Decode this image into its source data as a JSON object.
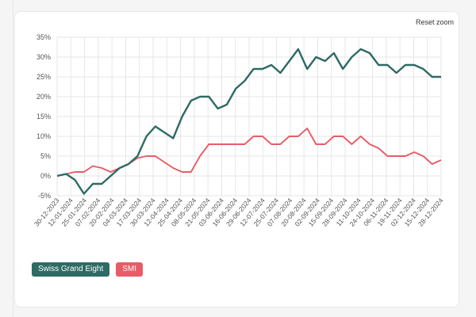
{
  "toolbar": {
    "reset_label": "Reset zoom"
  },
  "colors": {
    "swiss": "#2e6b64",
    "smi": "#e85c67",
    "grid": "#e6e6e6"
  },
  "chart_data": {
    "type": "line",
    "ylim": [
      -5,
      35
    ],
    "y_ticks": [
      "-5%",
      "0%",
      "5%",
      "10%",
      "15%",
      "20%",
      "25%",
      "30%",
      "35%"
    ],
    "x_ticks": [
      "30-12-2023",
      "12-01-2024",
      "25-01-2024",
      "07-02-2024",
      "20-02-2024",
      "04-03-2024",
      "17-03-2024",
      "30-03-2024",
      "12-04-2024",
      "25-04-2024",
      "08-05-2024",
      "21-05-2024",
      "03-06-2024",
      "16-06-2024",
      "29-06-2024",
      "12-07-2024",
      "25-07-2024",
      "07-08-2024",
      "20-08-2024",
      "02-09-2024",
      "15-09-2024",
      "28-09-2024",
      "11-10-2024",
      "24-10-2024",
      "06-11-2024",
      "19-11-2024",
      "02-12-2024",
      "15-12-2024",
      "28-12-2024"
    ],
    "grid": true,
    "legend_position": "bottom-left",
    "series": [
      {
        "name": "Swiss Grand Eight",
        "values": [
          0,
          0.5,
          -1,
          -4.5,
          -2,
          -2,
          0,
          2,
          3,
          5,
          10,
          12.5,
          11,
          9.5,
          15,
          19,
          20,
          20,
          17,
          18,
          22,
          24,
          27,
          27,
          28,
          26,
          29,
          32,
          27,
          30,
          29,
          31,
          27,
          30,
          32,
          31,
          28,
          28,
          26,
          28,
          28,
          27,
          25,
          25
        ]
      },
      {
        "name": "SMI",
        "values": [
          0,
          0.5,
          1,
          1,
          2.5,
          2,
          1,
          2,
          3,
          4.5,
          5,
          5,
          3.5,
          2,
          1,
          1,
          5,
          8,
          8,
          8,
          8,
          8,
          10,
          10,
          8,
          8,
          10,
          10,
          12,
          8,
          8,
          10,
          10,
          8,
          10,
          8,
          7,
          5,
          5,
          5,
          6,
          5,
          3,
          4
        ]
      }
    ]
  }
}
